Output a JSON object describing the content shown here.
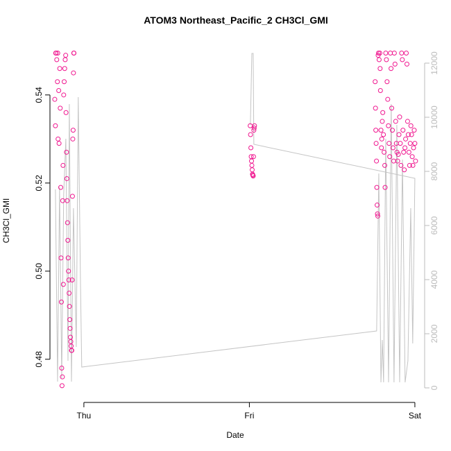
{
  "chart_data": {
    "type": "scatter",
    "title": "ATOM3 Northeast_Pacific_2 CH3Cl_GMI",
    "xlabel": "Date",
    "ylabel": "CH3Cl_GMI",
    "xlim": [
      -0.205,
      2.059
    ],
    "xticks": [
      {
        "value": 0,
        "label": "Thu"
      },
      {
        "value": 1,
        "label": "Fri"
      },
      {
        "value": 2,
        "label": "Sat"
      }
    ],
    "ylim": [
      0.4702,
      0.5521
    ],
    "yticks": [
      0.48,
      {
        "value": 0.5,
        "label": "0.50"
      },
      0.52,
      0.54
    ],
    "y2lim": [
      -538,
      12795
    ],
    "y2ticks": [
      0,
      2000,
      4000,
      6000,
      8000,
      10000,
      12000
    ],
    "y2color": "#bbbbbb",
    "series": [
      {
        "type": "line",
        "axis": "y2",
        "color": "#c4c4c4",
        "x": [
          -0.172,
          -0.159,
          -0.147,
          -0.134,
          -0.122,
          -0.109,
          -0.096,
          -0.088,
          -0.075,
          -0.063,
          -0.046,
          -0.034,
          -0.021,
          -0.013,
          1.769,
          1.782,
          1.795,
          1.803,
          1.811,
          1.824,
          1.841,
          1.857,
          1.874,
          1.891,
          1.908,
          1.925,
          1.941,
          1.958,
          1.975,
          1.987,
          2.0,
          1.027,
          1.023,
          1.015,
          1.006
        ],
        "values": [
          7333,
          231,
          7410,
          359,
          7154,
          9205,
          1000,
          10487,
          231,
          6641,
          1513,
          10744,
          4077,
          769,
          2103,
          7923,
          205,
          1769,
          205,
          9205,
          205,
          10487,
          205,
          9718,
          205,
          8436,
          205,
          1000,
          6641,
          1641,
          7744,
          9000,
          12359,
          12359,
          9718
        ]
      },
      {
        "type": "scatter",
        "color": "#f0168f",
        "x": [
          -0.176,
          -0.172,
          -0.168,
          -0.164,
          -0.16,
          -0.156,
          -0.152,
          -0.15,
          -0.146,
          -0.143,
          -0.14,
          -0.138,
          -0.136,
          -0.134,
          -0.132,
          -0.13,
          -0.128,
          -0.126,
          -0.124,
          -0.122,
          -0.119,
          -0.116,
          -0.113,
          -0.11,
          -0.108,
          -0.105,
          -0.103,
          -0.101,
          -0.099,
          -0.097,
          -0.095,
          -0.093,
          -0.091,
          -0.089,
          -0.087,
          -0.085,
          -0.083,
          -0.081,
          -0.079,
          -0.077,
          -0.075,
          -0.073,
          -0.071,
          -0.069,
          -0.067,
          -0.065,
          -0.063,
          -0.061,
          -0.06,
          -0.158,
          -0.17,
          1.005,
          1.007,
          1.009,
          1.011,
          1.013,
          1.015,
          1.017,
          1.019,
          1.021,
          1.023,
          1.025,
          1.027,
          1.029,
          1.031,
          1.76,
          1.762,
          1.764,
          1.766,
          1.768,
          1.77,
          1.772,
          1.774,
          1.776,
          1.778,
          1.78,
          1.784,
          1.788,
          1.79,
          1.792,
          1.795,
          1.798,
          1.8,
          1.803,
          1.806,
          1.81,
          1.814,
          1.818,
          1.82,
          1.824,
          1.828,
          1.832,
          1.836,
          1.84,
          1.844,
          1.848,
          1.852,
          1.856,
          1.86,
          1.864,
          1.868,
          1.872,
          1.876,
          1.88,
          1.884,
          1.888,
          1.892,
          1.896,
          1.9,
          1.904,
          1.908,
          1.912,
          1.916,
          1.92,
          1.924,
          1.928,
          1.932,
          1.936,
          1.94,
          1.944,
          1.948,
          1.952,
          1.956,
          1.96,
          1.964,
          1.968,
          1.972,
          1.976,
          1.98,
          1.984,
          1.988,
          1.992,
          1.996,
          2.0,
          2.004
        ],
        "values": [
          0.539,
          0.533,
          0.5495,
          0.548,
          0.543,
          0.53,
          0.541,
          0.529,
          0.546,
          0.537,
          0.519,
          0.503,
          0.493,
          0.478,
          0.474,
          0.476,
          0.516,
          0.524,
          0.497,
          0.54,
          0.543,
          0.546,
          0.548,
          0.549,
          0.536,
          0.527,
          0.521,
          0.516,
          0.511,
          0.507,
          0.503,
          0.5,
          0.498,
          0.495,
          0.492,
          0.489,
          0.487,
          0.485,
          0.484,
          0.483,
          0.482,
          0.482,
          0.498,
          0.517,
          0.53,
          0.532,
          0.545,
          0.5495,
          0.5495,
          0.5495,
          0.5495,
          0.533,
          0.531,
          0.528,
          0.526,
          0.525,
          0.524,
          0.523,
          0.522,
          0.5218,
          0.5216,
          0.526,
          0.532,
          0.5325,
          0.533,
          0.543,
          0.537,
          0.532,
          0.529,
          0.525,
          0.519,
          0.515,
          0.513,
          0.5125,
          0.549,
          0.5495,
          0.548,
          0.5495,
          0.546,
          0.541,
          0.532,
          0.528,
          0.53,
          0.534,
          0.536,
          0.531,
          0.527,
          0.524,
          0.519,
          0.5495,
          0.548,
          0.543,
          0.539,
          0.533,
          0.529,
          0.526,
          0.5495,
          0.546,
          0.537,
          0.532,
          0.528,
          0.525,
          0.5495,
          0.547,
          0.534,
          0.529,
          0.527,
          0.525,
          0.5265,
          0.531,
          0.535,
          0.529,
          0.524,
          0.5495,
          0.548,
          0.532,
          0.527,
          0.523,
          0.528,
          0.53,
          0.5495,
          0.547,
          0.534,
          0.531,
          0.527,
          0.524,
          0.529,
          0.533,
          0.531,
          0.526,
          0.524,
          0.528,
          0.532,
          0.529,
          0.525
        ]
      }
    ]
  }
}
